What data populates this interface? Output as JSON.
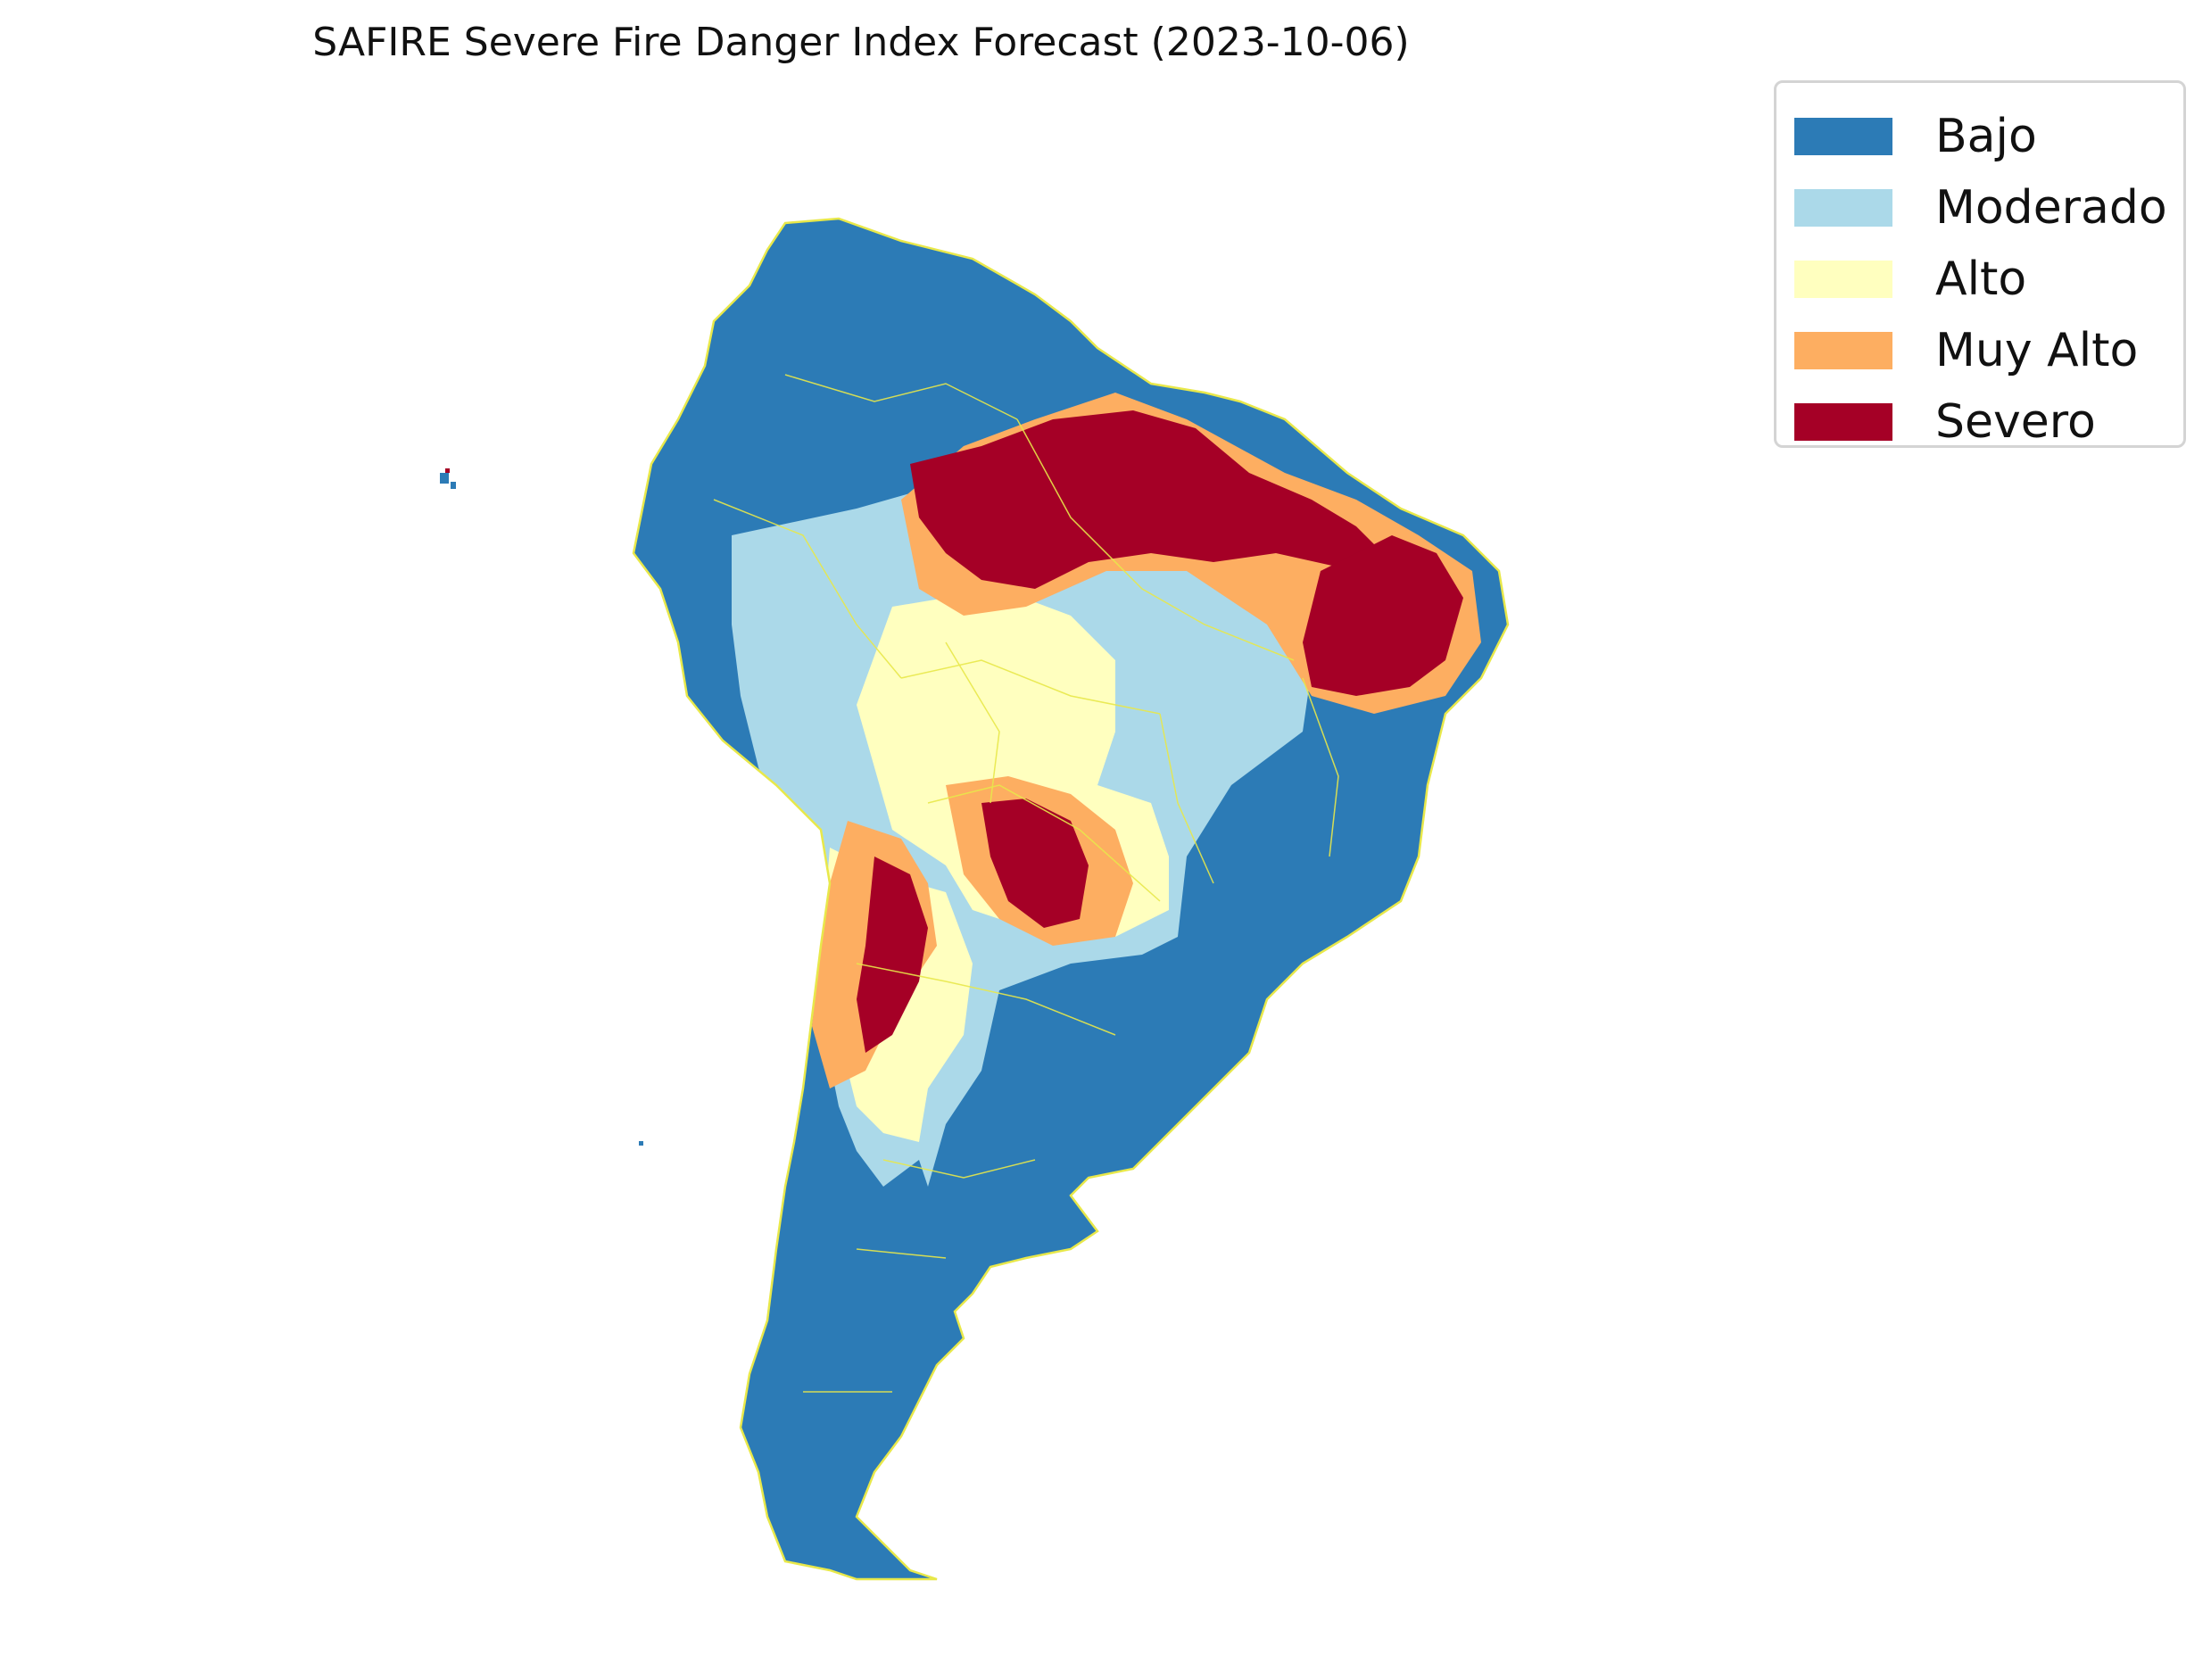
{
  "title": "SAFIRE Severe Fire Danger Index Forecast (2023-10-06)",
  "legend": {
    "items": [
      {
        "label": "Bajo",
        "color": "#2c7bb6"
      },
      {
        "label": "Moderado",
        "color": "#abd9e9"
      },
      {
        "label": "Alto",
        "color": "#ffffbf"
      },
      {
        "label": "Muy Alto",
        "color": "#fdae61"
      },
      {
        "label": "Severo",
        "color": "#a50026"
      }
    ]
  },
  "map": {
    "region": "South America",
    "border_color": "#e8e84a"
  }
}
